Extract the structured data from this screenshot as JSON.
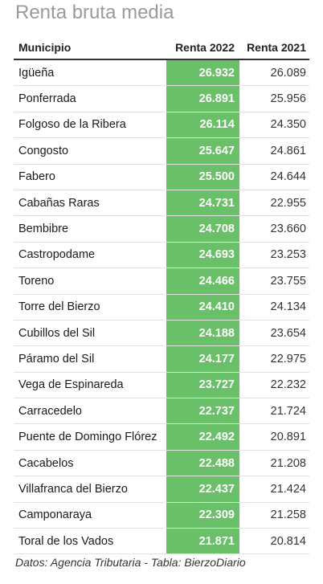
{
  "title": "Renta bruta media",
  "table": {
    "headers": [
      "Municipio",
      "Renta 2022",
      "Renta 2021"
    ],
    "rows": [
      [
        "Igüeña",
        "26.932",
        "26.089"
      ],
      [
        "Ponferrada",
        "26.891",
        "25.956"
      ],
      [
        "Folgoso de la Ribera",
        "26.114",
        "24.350"
      ],
      [
        "Congosto",
        "25.647",
        "24.861"
      ],
      [
        "Fabero",
        "25.500",
        "24.644"
      ],
      [
        "Cabañas Raras",
        "24.731",
        "22.955"
      ],
      [
        "Bembibre",
        "24.708",
        "23.660"
      ],
      [
        "Castropodame",
        "24.693",
        "23.253"
      ],
      [
        "Toreno",
        "24.466",
        "23.755"
      ],
      [
        "Torre del Bierzo",
        "24.410",
        "24.134"
      ],
      [
        "Cubillos del Sil",
        "24.188",
        "23.654"
      ],
      [
        "Páramo del Sil",
        "24.177",
        "22.975"
      ],
      [
        "Vega de Espinareda",
        "23.727",
        "22.232"
      ],
      [
        "Carracedelo",
        "22.737",
        "21.724"
      ],
      [
        "Puente de Domingo Flórez",
        "22.492",
        "20.891"
      ],
      [
        "Cacabelos",
        "22.488",
        "21.208"
      ],
      [
        "Villafranca del Bierzo",
        "22.437",
        "21.424"
      ],
      [
        "Camponaraya",
        "22.309",
        "21.258"
      ],
      [
        "Toral de los Vados",
        "21.871",
        "20.814"
      ]
    ]
  },
  "source": "Datos: Agencia Tributaria - Tabla: BierzoDiario",
  "colors": {
    "highlight_column": "#6abf69",
    "title": "#9a9a9a"
  }
}
